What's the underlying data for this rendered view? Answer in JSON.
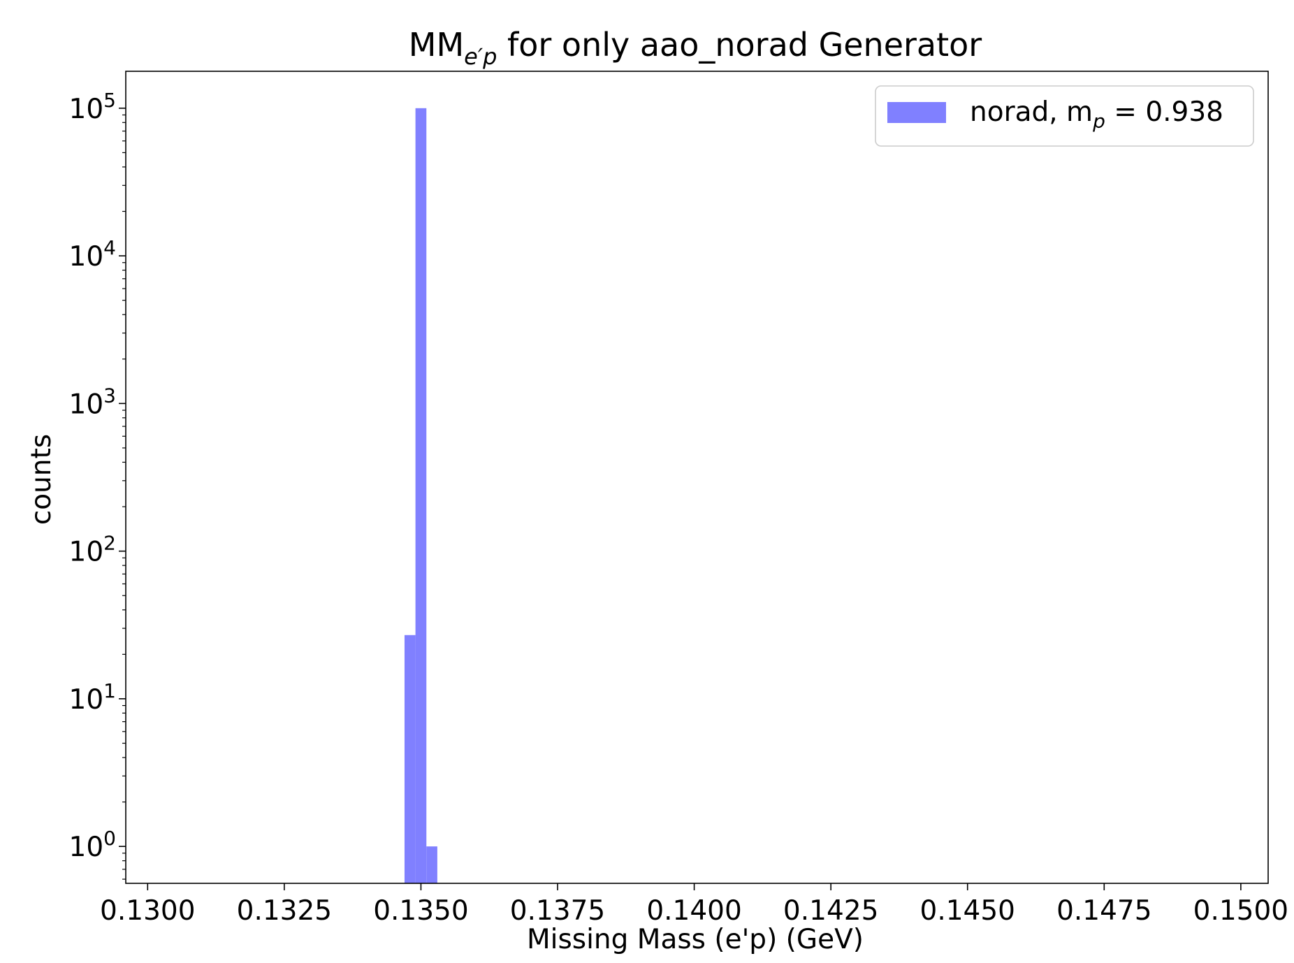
{
  "chart_data": {
    "type": "bar",
    "title_main": "MM",
    "title_subscript": "e′p",
    "title_rest": " for only aao_norad Generator",
    "xlabel": "Missing Mass (e'p) (GeV)",
    "ylabel": "counts",
    "xlim": [
      0.1296,
      0.1505
    ],
    "ylim_log10": [
      -0.25,
      5.25
    ],
    "yscale": "log",
    "x_ticks": [
      {
        "value": 0.13,
        "label": "0.1300"
      },
      {
        "value": 0.1325,
        "label": "0.1325"
      },
      {
        "value": 0.135,
        "label": "0.1350"
      },
      {
        "value": 0.1375,
        "label": "0.1375"
      },
      {
        "value": 0.14,
        "label": "0.1400"
      },
      {
        "value": 0.1425,
        "label": "0.1425"
      },
      {
        "value": 0.145,
        "label": "0.1450"
      },
      {
        "value": 0.1475,
        "label": "0.1475"
      },
      {
        "value": 0.15,
        "label": "0.1500"
      }
    ],
    "y_ticks": [
      {
        "exp": 0,
        "base": "10",
        "sup": "0"
      },
      {
        "exp": 1,
        "base": "10",
        "sup": "1"
      },
      {
        "exp": 2,
        "base": "10",
        "sup": "2"
      },
      {
        "exp": 3,
        "base": "10",
        "sup": "3"
      },
      {
        "exp": 4,
        "base": "10",
        "sup": "4"
      },
      {
        "exp": 5,
        "base": "10",
        "sup": "5"
      }
    ],
    "series": [
      {
        "name": "norad",
        "legend_prefix": "norad, m",
        "legend_subscript": "p",
        "legend_suffix": " = 0.938",
        "color": "#8080ff",
        "bins": [
          {
            "x0": 0.1347,
            "x1": 0.1349,
            "count": 27
          },
          {
            "x0": 0.1349,
            "x1": 0.1351,
            "count": 100000
          },
          {
            "x0": 0.1351,
            "x1": 0.1353,
            "count": 1
          }
        ]
      }
    ],
    "legend_position": "top-right",
    "grid": false
  }
}
